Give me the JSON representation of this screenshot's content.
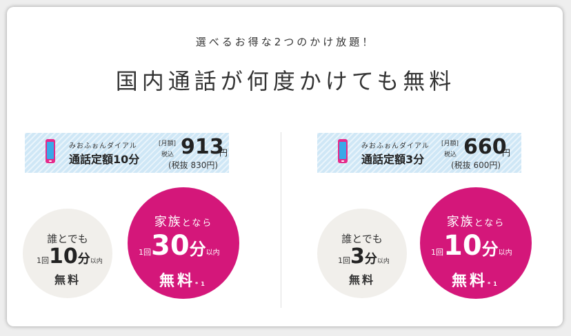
{
  "header": {
    "subtitle": "選べるお得な2つのかけ放題！",
    "title": "国内通話が何度かけても無料"
  },
  "colors": {
    "accent": "#d4177a",
    "banner": "#cfe7f6",
    "gray_circle": "#f1efeb"
  },
  "plans": [
    {
      "icon": "phone-icon",
      "brand": "みおふぉんダイアル",
      "name": "通話定額10分",
      "monthly_label": "[月額]",
      "tax_in_label": "税込",
      "price": "913",
      "yen": "円",
      "tax_excluded": "(税抜 830円)",
      "anyone": {
        "line1": "誰とでも",
        "pre": "1回",
        "num": "10",
        "unit": "分",
        "post": "以内",
        "free": "無料"
      },
      "family": {
        "line1_a": "家族",
        "line1_b": "となら",
        "pre": "1回",
        "num": "30",
        "unit": "分",
        "post": "以内",
        "free": "無料",
        "note": "*1"
      }
    },
    {
      "icon": "phone-icon",
      "brand": "みおふぉんダイアル",
      "name": "通話定額3分",
      "monthly_label": "[月額]",
      "tax_in_label": "税込",
      "price": "660",
      "yen": "円",
      "tax_excluded": "(税抜 600円)",
      "anyone": {
        "line1": "誰とでも",
        "pre": "1回",
        "num": "3",
        "unit": "分",
        "post": "以内",
        "free": "無料"
      },
      "family": {
        "line1_a": "家族",
        "line1_b": "となら",
        "pre": "1回",
        "num": "10",
        "unit": "分",
        "post": "以内",
        "free": "無料",
        "note": "*1"
      }
    }
  ]
}
